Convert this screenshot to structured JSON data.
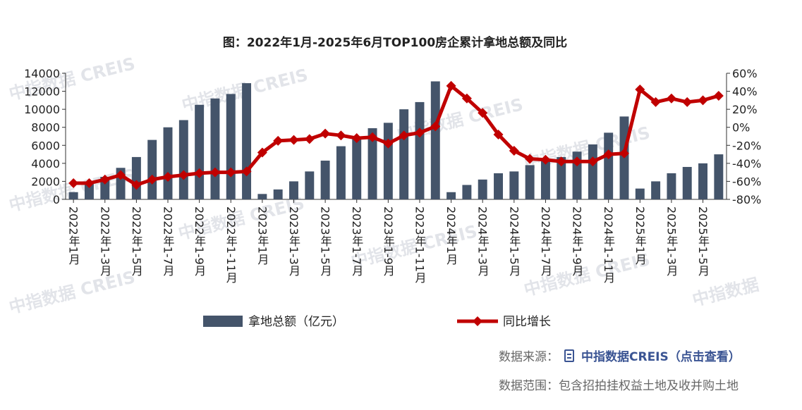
{
  "chart_data": {
    "type": "bar+line",
    "title": "图：2022年1月-2025年6月TOP100房企累计拿地总额及同比",
    "x_tick_labels": [
      "2022年1月",
      "2022年1-3月",
      "2022年1-5月",
      "2022年1-7月",
      "2022年1-9月",
      "2022年1-11月",
      "2023年1月",
      "2023年1-3月",
      "2023年1-5月",
      "2023年1-7月",
      "2023年1-9月",
      "2023年1-11月",
      "2024年1月",
      "2024年1-3月",
      "2024年1-5月",
      "2024年1-7月",
      "2024年1-9月",
      "2024年1-11月",
      "2025年1月",
      "2025年1-3月",
      "2025年1-5月"
    ],
    "series": [
      {
        "name": "拿地总额（亿元）",
        "type": "bar",
        "axis": "left",
        "color": "#44546a",
        "values": [
          800,
          2000,
          2500,
          3500,
          4700,
          6600,
          8000,
          8800,
          10500,
          11200,
          11700,
          12900,
          600,
          1100,
          2000,
          3100,
          4300,
          5900,
          6800,
          7900,
          8500,
          10000,
          10800,
          13100,
          800,
          1600,
          2200,
          2900,
          3100,
          3800,
          4300,
          4700,
          5300,
          6100,
          7400,
          9200,
          1200,
          2000,
          2900,
          3600,
          4000,
          5000
        ]
      },
      {
        "name": "同比增长",
        "type": "line",
        "axis": "right",
        "color": "#c00000",
        "values": [
          -62,
          -62,
          -58,
          -53,
          -64,
          -58,
          -55,
          -53,
          -51,
          -50,
          -50,
          -49,
          -28,
          -15,
          -14,
          -13,
          -7,
          -9,
          -12,
          -11,
          -18,
          -9,
          -6,
          1,
          46,
          32,
          16,
          -8,
          -26,
          -35,
          -36,
          -38,
          -38,
          -38,
          -30,
          -29,
          42,
          28,
          32,
          28,
          30,
          35
        ]
      }
    ],
    "y_left": {
      "min": 0,
      "max": 14000,
      "ticks": [
        0,
        2000,
        4000,
        6000,
        8000,
        10000,
        12000,
        14000
      ]
    },
    "y_right": {
      "min": -80,
      "max": 60,
      "ticks": [
        "-80%",
        "-60%",
        "-40%",
        "-20%",
        "0%",
        "20%",
        "40%",
        "60%"
      ],
      "tick_values": [
        -80,
        -60,
        -40,
        -20,
        0,
        20,
        40,
        60
      ]
    },
    "legend": {
      "position": "bottom",
      "entries": [
        "拿地总额（亿元）",
        "同比增长"
      ]
    },
    "colors": {
      "bar": "#44546a",
      "line": "#c00000"
    }
  },
  "watermark": {
    "text_cn": "中指数据",
    "text_en": "CREIS"
  },
  "source": {
    "label": "数据来源：",
    "link_text": "中指数据CREIS（点击查看）"
  },
  "scope": {
    "text": "数据范围：包含招拍挂权益土地及收并购土地"
  }
}
